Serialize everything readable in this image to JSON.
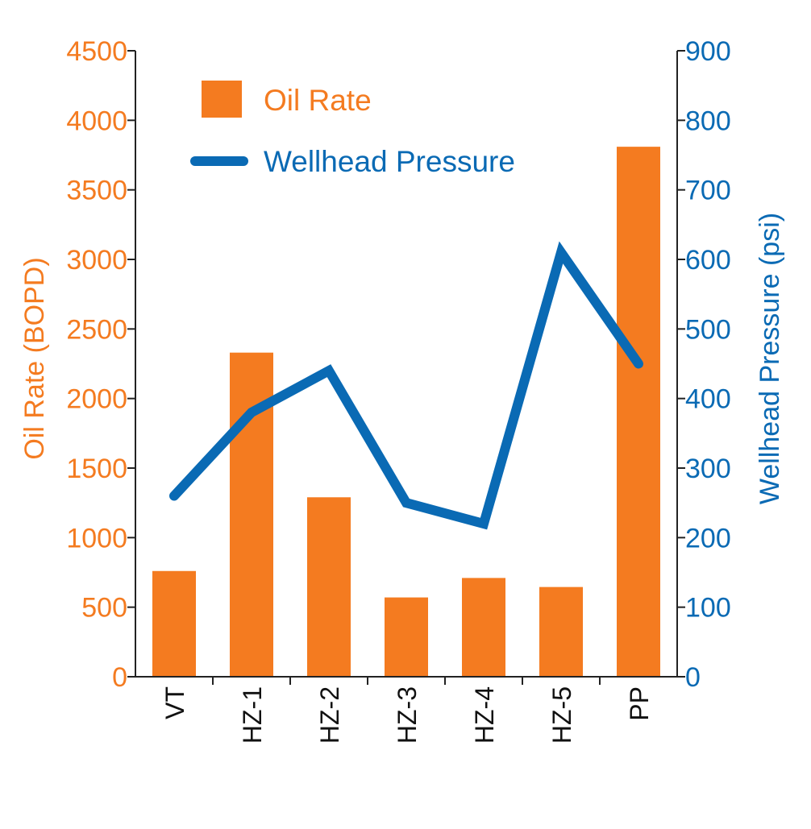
{
  "chart_data": {
    "type": "bar+line",
    "categories": [
      "VT",
      "HZ-1",
      "HZ-2",
      "HZ-3",
      "HZ-4",
      "HZ-5",
      "PP"
    ],
    "series": [
      {
        "name": "Oil Rate",
        "type": "bar",
        "axis": "left",
        "color": "#F47B20",
        "values": [
          760,
          2330,
          1290,
          570,
          710,
          645,
          3810
        ]
      },
      {
        "name": "Wellhead Pressure",
        "type": "line",
        "axis": "right",
        "color": "#0A6AB4",
        "values": [
          260,
          380,
          440,
          250,
          220,
          610,
          450
        ]
      }
    ],
    "left_axis": {
      "label": "Oil Rate (BOPD)",
      "range": [
        0,
        4500
      ],
      "ticks": [
        "0",
        "500",
        "1000",
        "1500",
        "2000",
        "2500",
        "3000",
        "3500",
        "4000",
        "4500"
      ]
    },
    "right_axis": {
      "label": "Wellhead Pressure (psi)",
      "range": [
        0,
        900
      ],
      "ticks": [
        "0",
        "100",
        "200",
        "300",
        "400",
        "500",
        "600",
        "700",
        "800",
        "900"
      ]
    },
    "legend": {
      "placement": "top-left",
      "entries": [
        "Oil Rate",
        "Wellhead Pressure"
      ]
    },
    "grid": false
  }
}
